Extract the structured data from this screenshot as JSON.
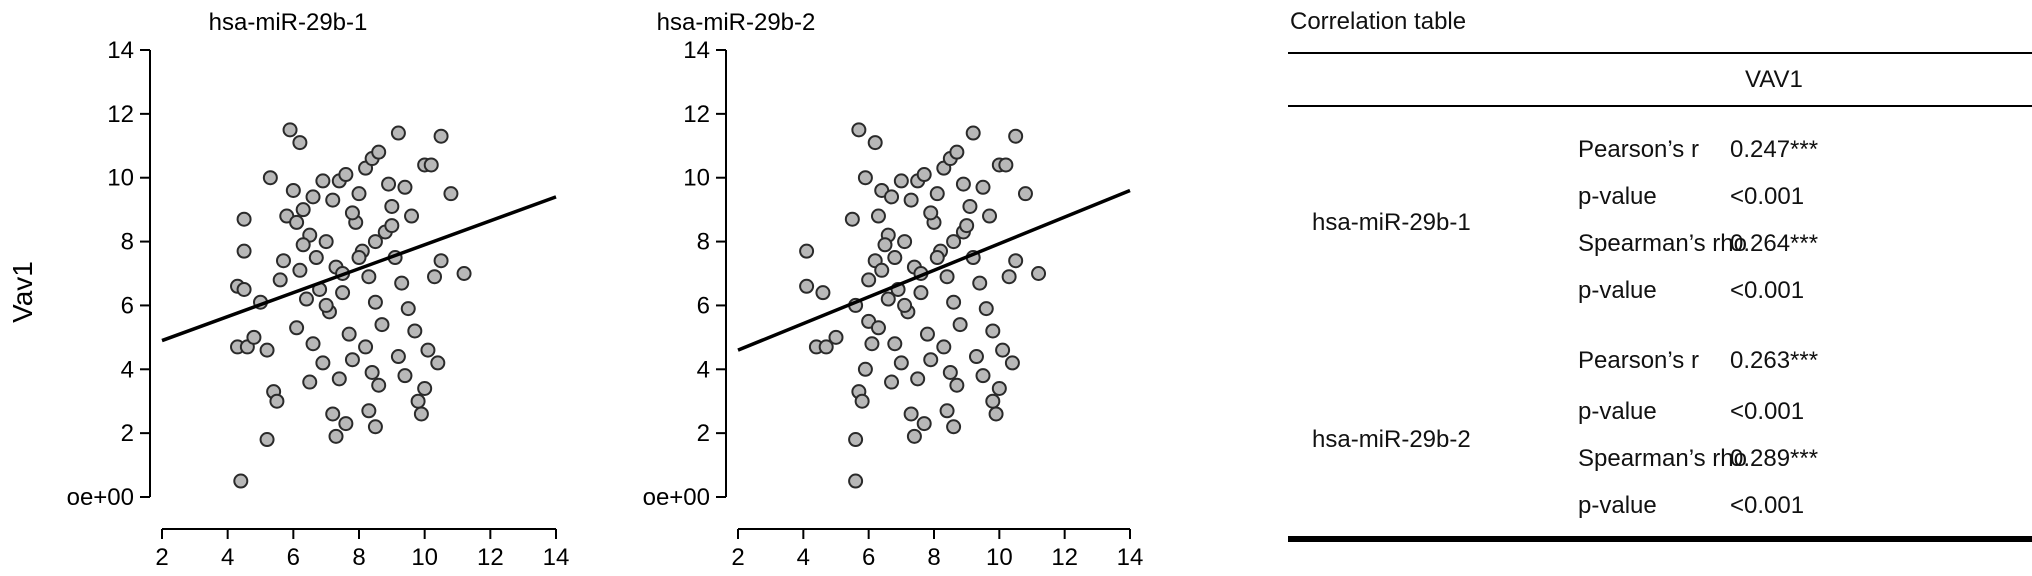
{
  "chart_data": [
    {
      "type": "scatter",
      "title": "hsa-miR-29b-1",
      "xlabel": "",
      "ylabel": "Vav1",
      "xlim": [
        2,
        14
      ],
      "ylim": [
        0,
        14
      ],
      "x_ticks": [
        "2",
        "4",
        "6",
        "8",
        "10",
        "12",
        "14"
      ],
      "y_ticks": [
        "oe+00",
        "2",
        "4",
        "6",
        "8",
        "10",
        "12",
        "14"
      ],
      "grid": false,
      "regression_line": {
        "x": [
          2,
          14
        ],
        "y": [
          4.9,
          9.4
        ]
      },
      "points": [
        [
          4.4,
          0.5
        ],
        [
          5.2,
          1.8
        ],
        [
          4.3,
          4.7
        ],
        [
          4.6,
          4.7
        ],
        [
          4.8,
          5.0
        ],
        [
          4.3,
          6.6
        ],
        [
          4.5,
          6.5
        ],
        [
          4.5,
          7.7
        ],
        [
          4.5,
          8.7
        ],
        [
          5.0,
          6.1
        ],
        [
          5.4,
          3.3
        ],
        [
          5.5,
          3.0
        ],
        [
          5.2,
          4.6
        ],
        [
          5.3,
          10.0
        ],
        [
          5.6,
          6.8
        ],
        [
          5.7,
          7.4
        ],
        [
          5.8,
          8.8
        ],
        [
          5.9,
          11.5
        ],
        [
          6.2,
          11.1
        ],
        [
          6.0,
          9.6
        ],
        [
          6.1,
          8.6
        ],
        [
          6.3,
          9.0
        ],
        [
          6.5,
          8.2
        ],
        [
          6.7,
          7.5
        ],
        [
          6.2,
          7.1
        ],
        [
          6.4,
          6.2
        ],
        [
          6.8,
          6.5
        ],
        [
          6.1,
          5.3
        ],
        [
          6.6,
          4.8
        ],
        [
          6.9,
          4.2
        ],
        [
          6.5,
          3.6
        ],
        [
          6.3,
          7.9
        ],
        [
          7.0,
          8.0
        ],
        [
          7.2,
          9.3
        ],
        [
          7.4,
          9.9
        ],
        [
          7.6,
          10.1
        ],
        [
          7.3,
          7.2
        ],
        [
          7.5,
          6.4
        ],
        [
          7.1,
          5.8
        ],
        [
          7.7,
          5.1
        ],
        [
          7.8,
          4.3
        ],
        [
          7.4,
          3.7
        ],
        [
          7.2,
          2.6
        ],
        [
          7.3,
          1.9
        ],
        [
          7.6,
          2.3
        ],
        [
          7.9,
          8.6
        ],
        [
          8.0,
          9.5
        ],
        [
          8.2,
          10.3
        ],
        [
          8.4,
          10.6
        ],
        [
          8.6,
          10.8
        ],
        [
          8.1,
          7.7
        ],
        [
          8.3,
          6.9
        ],
        [
          8.5,
          6.1
        ],
        [
          8.7,
          5.4
        ],
        [
          8.2,
          4.7
        ],
        [
          8.4,
          3.9
        ],
        [
          8.6,
          3.5
        ],
        [
          8.3,
          2.7
        ],
        [
          8.5,
          2.2
        ],
        [
          8.8,
          8.3
        ],
        [
          9.0,
          9.1
        ],
        [
          9.2,
          11.4
        ],
        [
          9.4,
          9.7
        ],
        [
          9.6,
          8.8
        ],
        [
          9.1,
          7.5
        ],
        [
          9.3,
          6.7
        ],
        [
          9.5,
          5.9
        ],
        [
          9.7,
          5.2
        ],
        [
          9.2,
          4.4
        ],
        [
          9.4,
          3.8
        ],
        [
          9.8,
          3.0
        ],
        [
          9.9,
          2.6
        ],
        [
          10.0,
          10.4
        ],
        [
          10.2,
          10.4
        ],
        [
          10.5,
          11.3
        ],
        [
          10.8,
          9.5
        ],
        [
          11.2,
          7.0
        ],
        [
          10.5,
          7.4
        ],
        [
          10.3,
          6.9
        ],
        [
          10.1,
          4.6
        ],
        [
          10.4,
          4.2
        ],
        [
          10.0,
          3.4
        ],
        [
          7.0,
          6.0
        ],
        [
          7.5,
          7.0
        ],
        [
          8.0,
          7.5
        ],
        [
          8.5,
          8.0
        ],
        [
          9.0,
          8.5
        ],
        [
          6.6,
          9.4
        ],
        [
          6.9,
          9.9
        ],
        [
          8.9,
          9.8
        ],
        [
          7.8,
          8.9
        ]
      ]
    },
    {
      "type": "scatter",
      "title": "hsa-miR-29b-2",
      "xlabel": "",
      "ylabel": "",
      "xlim": [
        2,
        14
      ],
      "ylim": [
        0,
        14
      ],
      "x_ticks": [
        "2",
        "4",
        "6",
        "8",
        "10",
        "12",
        "14"
      ],
      "y_ticks": [
        "oe+00",
        "2",
        "4",
        "6",
        "8",
        "10",
        "12",
        "14"
      ],
      "grid": false,
      "regression_line": {
        "x": [
          2,
          14
        ],
        "y": [
          4.6,
          9.6
        ]
      },
      "points": [
        [
          5.6,
          0.5
        ],
        [
          5.6,
          1.8
        ],
        [
          4.4,
          4.7
        ],
        [
          4.7,
          4.7
        ],
        [
          5.0,
          5.0
        ],
        [
          4.1,
          6.6
        ],
        [
          4.6,
          6.4
        ],
        [
          4.1,
          7.7
        ],
        [
          5.6,
          6.0
        ],
        [
          5.5,
          8.7
        ],
        [
          5.7,
          11.5
        ],
        [
          6.2,
          11.1
        ],
        [
          5.9,
          10.0
        ],
        [
          5.7,
          3.3
        ],
        [
          5.8,
          3.0
        ],
        [
          5.9,
          4.0
        ],
        [
          6.1,
          4.8
        ],
        [
          6.0,
          5.5
        ],
        [
          6.0,
          6.8
        ],
        [
          6.2,
          7.4
        ],
        [
          6.3,
          8.8
        ],
        [
          6.4,
          9.6
        ],
        [
          6.6,
          8.2
        ],
        [
          6.8,
          7.5
        ],
        [
          6.4,
          7.1
        ],
        [
          6.6,
          6.2
        ],
        [
          6.9,
          6.5
        ],
        [
          6.3,
          5.3
        ],
        [
          6.8,
          4.8
        ],
        [
          7.0,
          4.2
        ],
        [
          6.7,
          3.6
        ],
        [
          6.5,
          7.9
        ],
        [
          7.1,
          8.0
        ],
        [
          7.3,
          9.3
        ],
        [
          7.5,
          9.9
        ],
        [
          7.7,
          10.1
        ],
        [
          7.4,
          7.2
        ],
        [
          7.6,
          6.4
        ],
        [
          7.2,
          5.8
        ],
        [
          7.8,
          5.1
        ],
        [
          7.9,
          4.3
        ],
        [
          7.5,
          3.7
        ],
        [
          7.3,
          2.6
        ],
        [
          7.4,
          1.9
        ],
        [
          7.7,
          2.3
        ],
        [
          8.0,
          8.6
        ],
        [
          8.1,
          9.5
        ],
        [
          8.3,
          10.3
        ],
        [
          8.5,
          10.6
        ],
        [
          8.7,
          10.8
        ],
        [
          8.2,
          7.7
        ],
        [
          8.4,
          6.9
        ],
        [
          8.6,
          6.1
        ],
        [
          8.8,
          5.4
        ],
        [
          8.3,
          4.7
        ],
        [
          8.5,
          3.9
        ],
        [
          8.7,
          3.5
        ],
        [
          8.4,
          2.7
        ],
        [
          8.6,
          2.2
        ],
        [
          8.9,
          8.3
        ],
        [
          9.1,
          9.1
        ],
        [
          9.2,
          11.4
        ],
        [
          9.5,
          9.7
        ],
        [
          9.7,
          8.8
        ],
        [
          9.2,
          7.5
        ],
        [
          9.4,
          6.7
        ],
        [
          9.6,
          5.9
        ],
        [
          9.8,
          5.2
        ],
        [
          9.3,
          4.4
        ],
        [
          9.5,
          3.8
        ],
        [
          9.8,
          3.0
        ],
        [
          9.9,
          2.6
        ],
        [
          10.0,
          10.4
        ],
        [
          10.2,
          10.4
        ],
        [
          10.5,
          11.3
        ],
        [
          10.8,
          9.5
        ],
        [
          11.2,
          7.0
        ],
        [
          10.5,
          7.4
        ],
        [
          10.3,
          6.9
        ],
        [
          10.1,
          4.6
        ],
        [
          10.4,
          4.2
        ],
        [
          10.0,
          3.4
        ],
        [
          7.1,
          6.0
        ],
        [
          7.6,
          7.0
        ],
        [
          8.1,
          7.5
        ],
        [
          8.6,
          8.0
        ],
        [
          9.0,
          8.5
        ],
        [
          6.7,
          9.4
        ],
        [
          7.0,
          9.9
        ],
        [
          8.9,
          9.8
        ],
        [
          7.9,
          8.9
        ]
      ]
    }
  ],
  "table": {
    "title": "Correlation table",
    "column_header": "VAV1",
    "groups": [
      {
        "name": "hsa-miR-29b-1",
        "rows": [
          {
            "label": "Pearson’s r",
            "value": "0.247***"
          },
          {
            "label": "p-value",
            "value": "<0.001"
          },
          {
            "label": "Spearman’s rho",
            "value": "0.264***"
          },
          {
            "label": "p-value",
            "value": "<0.001"
          }
        ]
      },
      {
        "name": "hsa-miR-29b-2",
        "rows": [
          {
            "label": "Pearson’s r",
            "value": "0.263***"
          },
          {
            "label": "p-value",
            "value": "<0.001"
          },
          {
            "label": "Spearman’s rho",
            "value": "0.289***"
          },
          {
            "label": "p-value",
            "value": "<0.001"
          }
        ]
      }
    ]
  }
}
